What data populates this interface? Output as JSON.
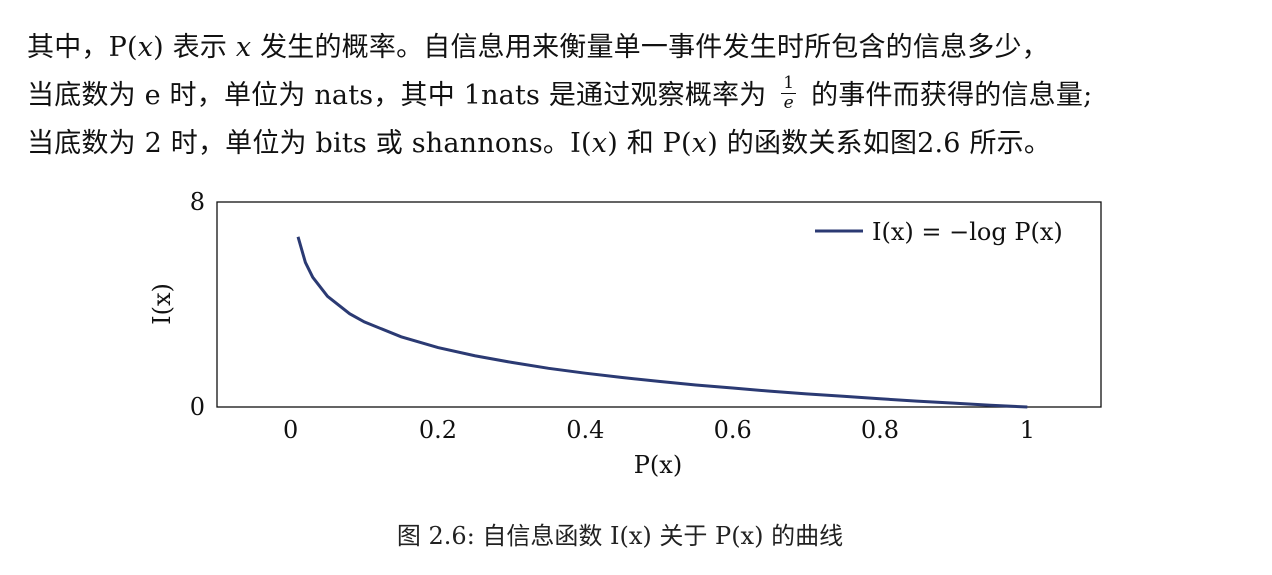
{
  "paragraph": {
    "line1": {
      "a": "其中，",
      "b": "P(",
      "c": "x",
      "d": ") 表示 ",
      "e": "x",
      "f": " 发生的概率。自信息用来衡量单一事件发生时所包含的信息多少，"
    },
    "line2": {
      "a": "当底数为 e 时，单位为 nats，其中 1nats 是通过观察概率为 ",
      "frac_num": "1",
      "frac_den": "e",
      "b": " 的事件而获得的信息量;"
    },
    "line3": {
      "a": "当底数为 2 时，单位为 bits 或 shannons。I(",
      "b": "x",
      "c": ") 和 P(",
      "d": "x",
      "e": ") 的函数关系如图2.6 所示。"
    }
  },
  "chart_data": {
    "type": "line",
    "title": "",
    "xlabel": "P(x)",
    "ylabel": "I(x)",
    "xlim": [
      -0.1,
      1.1
    ],
    "ylim": [
      0,
      8
    ],
    "x_ticks": [
      "0",
      "0.2",
      "0.4",
      "0.6",
      "0.8",
      "1"
    ],
    "x_tick_values": [
      0,
      0.2,
      0.4,
      0.6,
      0.8,
      1
    ],
    "y_ticks": [
      "0",
      "8"
    ],
    "y_tick_values": [
      0,
      8
    ],
    "grid": false,
    "legend_position": "top-right",
    "series": [
      {
        "name": "I(x) = −log P(x)",
        "color": "#2b3a73",
        "x": [
          0.01,
          0.02,
          0.03,
          0.05,
          0.08,
          0.1,
          0.15,
          0.2,
          0.25,
          0.3,
          0.35,
          0.4,
          0.45,
          0.5,
          0.55,
          0.6,
          0.65,
          0.7,
          0.75,
          0.8,
          0.85,
          0.9,
          0.95,
          1.0
        ],
        "y": [
          6.64,
          5.64,
          5.06,
          4.32,
          3.64,
          3.32,
          2.74,
          2.32,
          2.0,
          1.74,
          1.51,
          1.32,
          1.15,
          1.0,
          0.86,
          0.74,
          0.62,
          0.51,
          0.42,
          0.32,
          0.23,
          0.15,
          0.07,
          0.0
        ]
      }
    ]
  },
  "caption": "图 2.6: 自信息函数 I(x) 关于 P(x) 的曲线"
}
